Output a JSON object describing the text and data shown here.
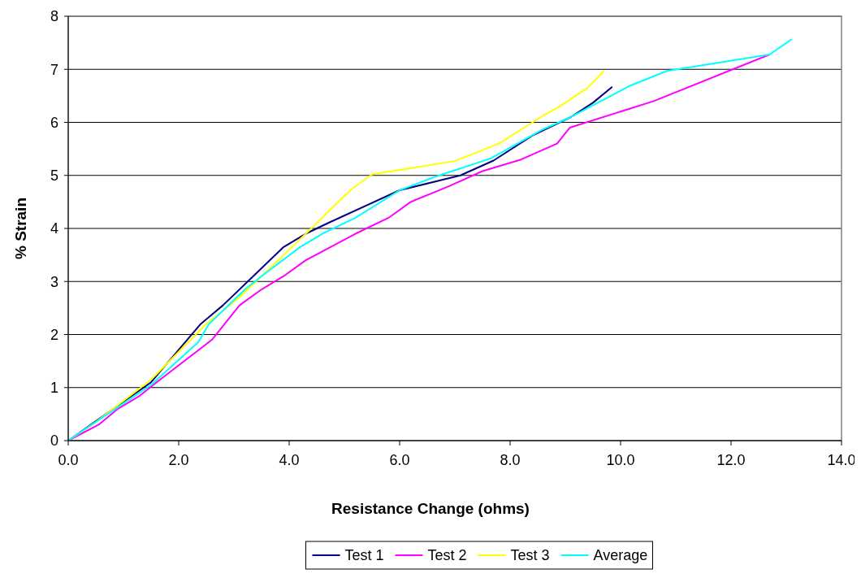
{
  "chart_data": {
    "type": "line",
    "xlabel": "Resistance Change (ohms)",
    "ylabel": "% Strain",
    "xlim": [
      0,
      14
    ],
    "ylim": [
      0,
      8
    ],
    "xticks": [
      {
        "value": 0,
        "label": "0.0"
      },
      {
        "value": 2,
        "label": "2.0"
      },
      {
        "value": 4,
        "label": "4.0"
      },
      {
        "value": 6,
        "label": "6.0"
      },
      {
        "value": 8,
        "label": "8.0"
      },
      {
        "value": 10,
        "label": "10.0"
      },
      {
        "value": 12,
        "label": "12.0"
      },
      {
        "value": 14,
        "label": "14.0"
      }
    ],
    "yticks": [
      0,
      1,
      2,
      3,
      4,
      5,
      6,
      7,
      8
    ],
    "grid": "y",
    "legend": "bottom",
    "marker": "none",
    "line_style": "solid",
    "series": [
      {
        "name": "Test 1",
        "color": "#000080",
        "x": [
          0,
          1.5,
          2.4,
          2.8,
          3.3,
          3.9,
          4.3,
          4.7,
          6.0,
          7.1,
          7.7,
          8.4,
          9.1,
          9.5,
          9.85
        ],
        "values": [
          0,
          1.1,
          2.2,
          2.55,
          3.05,
          3.65,
          3.9,
          4.1,
          4.72,
          5.0,
          5.28,
          5.75,
          6.1,
          6.37,
          6.67
        ]
      },
      {
        "name": "Test 2",
        "color": "#ff00ff",
        "x": [
          0,
          0.55,
          0.9,
          1.3,
          1.6,
          2.6,
          3.1,
          3.5,
          3.9,
          4.3,
          5.2,
          5.8,
          6.2,
          6.9,
          7.5,
          8.2,
          8.85,
          9.08,
          10.6,
          12.7
        ],
        "values": [
          0,
          0.3,
          0.6,
          0.85,
          1.1,
          1.9,
          2.55,
          2.85,
          3.1,
          3.4,
          3.9,
          4.2,
          4.5,
          4.8,
          5.08,
          5.3,
          5.6,
          5.9,
          6.4,
          7.28
        ]
      },
      {
        "name": "Test 3",
        "color": "#ffff00",
        "x": [
          0,
          0.5,
          1.5,
          2.5,
          3.1,
          3.5,
          4.0,
          4.4,
          4.86,
          5.13,
          5.5,
          7.0,
          7.8,
          8.6,
          8.9,
          9.4,
          9.7
        ],
        "values": [
          0,
          0.35,
          1.15,
          2.2,
          2.7,
          3.1,
          3.6,
          4.0,
          4.47,
          4.74,
          5.02,
          5.27,
          5.6,
          6.13,
          6.3,
          6.65,
          6.97
        ]
      },
      {
        "name": "Average",
        "color": "#00ffff",
        "x": [
          0,
          1.5,
          2.35,
          2.55,
          3.2,
          3.5,
          4.2,
          4.6,
          5.2,
          6.0,
          6.66,
          7.65,
          8.6,
          9.1,
          10.17,
          10.84,
          12.7,
          13.1
        ],
        "values": [
          0,
          1.05,
          1.85,
          2.2,
          2.85,
          3.1,
          3.65,
          3.9,
          4.2,
          4.72,
          4.98,
          5.32,
          5.87,
          6.1,
          6.69,
          6.97,
          7.28,
          7.57
        ]
      }
    ]
  }
}
